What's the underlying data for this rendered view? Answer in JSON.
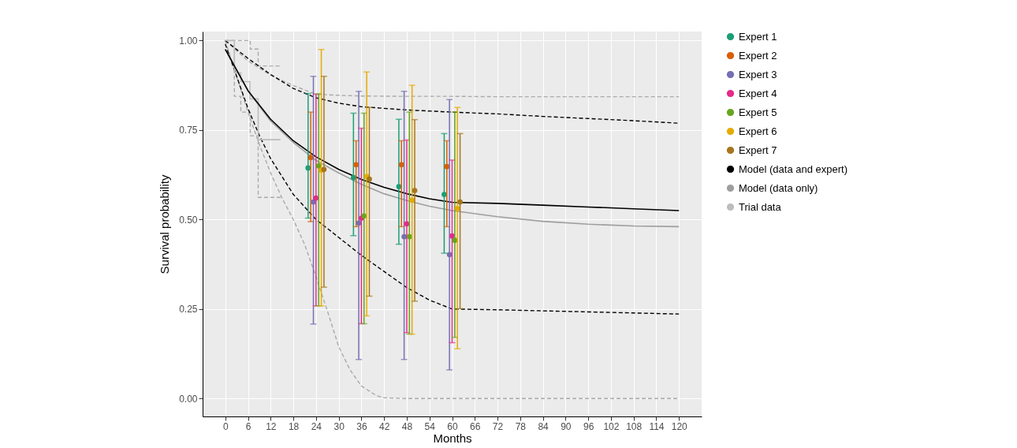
{
  "chart_data": {
    "type": "line",
    "xlabel": "Months",
    "ylabel": "Survival probability",
    "xlim": [
      -6,
      126
    ],
    "xticks": [
      0,
      6,
      12,
      18,
      24,
      30,
      36,
      42,
      48,
      54,
      60,
      66,
      72,
      78,
      84,
      90,
      96,
      102,
      108,
      114,
      120
    ],
    "ylim": [
      -0.05,
      1.025
    ],
    "yticks": [
      {
        "value": 0,
        "label": "0.00"
      },
      {
        "value": 0.25,
        "label": "0.25"
      },
      {
        "value": 0.5,
        "label": "0.50"
      },
      {
        "value": 0.75,
        "label": "0.75"
      },
      {
        "value": 1,
        "label": "1.00"
      }
    ],
    "grid": true,
    "legend": "right",
    "line_style": "solid",
    "series": [
      {
        "type": "line",
        "line_style": "dashed",
        "color": "#aaaaaa",
        "x": [
          0,
          6,
          12,
          18,
          24,
          30,
          36,
          48,
          60,
          72,
          84,
          96,
          108,
          120
        ],
        "values": [
          1.0,
          0.943,
          0.903,
          0.874,
          0.85,
          0.847,
          0.845,
          0.844,
          0.844,
          0.843,
          0.843,
          0.843,
          0.843,
          0.843
        ]
      },
      {
        "type": "line",
        "line_style": "dashed",
        "color": "#aaaaaa",
        "x": [
          0,
          3,
          6,
          9,
          12,
          15,
          18,
          21,
          24,
          27,
          30,
          33,
          36,
          40,
          42,
          48,
          60,
          72,
          84,
          96,
          108,
          120
        ],
        "values": [
          1.0,
          0.9,
          0.8,
          0.71,
          0.63,
          0.56,
          0.5,
          0.43,
          0.34,
          0.245,
          0.145,
          0.08,
          0.035,
          0.008,
          0.002,
          0,
          0,
          0,
          0,
          0,
          0,
          0
        ]
      },
      {
        "type": "step",
        "line_style": "dashed",
        "color": "#aaaaaa",
        "x": [
          0,
          6.6,
          8.7,
          14.6
        ],
        "values": [
          1.0,
          0.976,
          0.929,
          0.929
        ]
      },
      {
        "type": "step",
        "line_style": "dashed",
        "color": "#aaaaaa",
        "x": [
          0,
          2.4,
          4.1,
          6.6,
          8.7,
          14.6
        ],
        "values": [
          1.0,
          0.844,
          0.8,
          0.734,
          0.562,
          0.562
        ]
      },
      {
        "type": "line",
        "line_style": "dashed",
        "color": "#000000",
        "x": [
          0,
          6,
          12,
          18,
          24,
          30,
          36,
          48,
          60,
          72,
          84,
          96,
          108,
          120
        ],
        "values": [
          1.0,
          0.95,
          0.905,
          0.866,
          0.84,
          0.825,
          0.815,
          0.806,
          0.8,
          0.795,
          0.788,
          0.782,
          0.776,
          0.769
        ]
      },
      {
        "type": "line",
        "line_style": "dashed",
        "color": "#000000",
        "x": [
          0,
          3,
          6,
          9,
          12,
          18,
          24,
          30,
          36,
          42,
          48,
          54,
          60,
          72,
          84,
          96,
          108,
          120
        ],
        "values": [
          0.99,
          0.9,
          0.81,
          0.735,
          0.67,
          0.57,
          0.5,
          0.45,
          0.4,
          0.355,
          0.31,
          0.275,
          0.25,
          0.248,
          0.245,
          0.242,
          0.239,
          0.236
        ]
      },
      {
        "type": "step",
        "name": "Trial data",
        "color": "#bdbdbd",
        "x": [
          0,
          2.4,
          4.1,
          6.5,
          8.7,
          14.6
        ],
        "values": [
          1.0,
          0.91,
          0.885,
          0.837,
          0.723,
          0.723
        ]
      },
      {
        "type": "line",
        "name": "Model (data only)",
        "color": "#9e9e9e",
        "x": [
          0,
          6,
          12,
          18,
          24,
          30,
          36,
          42,
          48,
          54,
          60,
          72,
          84,
          96,
          108,
          120
        ],
        "values": [
          0.975,
          0.86,
          0.775,
          0.715,
          0.665,
          0.63,
          0.598,
          0.572,
          0.553,
          0.537,
          0.525,
          0.508,
          0.495,
          0.487,
          0.482,
          0.48
        ]
      },
      {
        "type": "line",
        "name": "Model (data and expert)",
        "color": "#000000",
        "x": [
          0,
          6,
          12,
          18,
          24,
          30,
          36,
          42,
          48,
          54,
          60,
          72,
          84,
          96,
          108,
          120
        ],
        "values": [
          0.975,
          0.86,
          0.78,
          0.72,
          0.675,
          0.64,
          0.612,
          0.59,
          0.572,
          0.558,
          0.548,
          0.545,
          0.54,
          0.535,
          0.53,
          0.525
        ]
      },
      {
        "type": "scatter",
        "marker": "circle",
        "name": "Expert 1",
        "color": "#1b9e77",
        "x": [
          21.9,
          33.9,
          45.9,
          57.9
        ],
        "values": [
          0.644,
          0.617,
          0.592,
          0.57
        ],
        "errors": [
          [
            0.504,
            0.852
          ],
          [
            0.455,
            0.797
          ],
          [
            0.431,
            0.78
          ],
          [
            0.406,
            0.74
          ]
        ]
      },
      {
        "type": "scatter",
        "marker": "circle",
        "name": "Expert 2",
        "color": "#d95f02",
        "x": [
          22.6,
          34.6,
          46.6,
          58.6
        ],
        "values": [
          0.673,
          0.653,
          0.653,
          0.648
        ],
        "errors": [
          [
            0.494,
            0.8
          ],
          [
            0.48,
            0.72
          ],
          [
            0.48,
            0.72
          ],
          [
            0.48,
            0.72
          ]
        ]
      },
      {
        "type": "scatter",
        "marker": "circle",
        "name": "Expert 3",
        "color": "#7570b3",
        "x": [
          23.3,
          35.3,
          47.3,
          59.3
        ],
        "values": [
          0.549,
          0.49,
          0.452,
          0.402
        ],
        "errors": [
          [
            0.208,
            0.9
          ],
          [
            0.109,
            0.858
          ],
          [
            0.109,
            0.858
          ],
          [
            0.08,
            0.835
          ]
        ]
      },
      {
        "type": "scatter",
        "marker": "circle",
        "name": "Expert 4",
        "color": "#e7298a",
        "x": [
          24.0,
          36.0,
          48.0,
          60.0
        ],
        "values": [
          0.56,
          0.504,
          0.488,
          0.454
        ],
        "errors": [
          [
            0.259,
            0.85
          ],
          [
            0.209,
            0.755
          ],
          [
            0.184,
            0.722
          ],
          [
            0.156,
            0.666
          ]
        ]
      },
      {
        "type": "scatter",
        "marker": "circle",
        "name": "Expert 5",
        "color": "#66a61e",
        "x": [
          24.7,
          36.7,
          48.7,
          60.7
        ],
        "values": [
          0.65,
          0.51,
          0.452,
          0.442
        ],
        "errors": [
          [
            0.259,
            0.851
          ],
          [
            0.209,
            0.797
          ],
          [
            0.18,
            0.8
          ],
          [
            0.171,
            0.8
          ]
        ]
      },
      {
        "type": "scatter",
        "marker": "circle",
        "name": "Expert 6",
        "color": "#e6ab02",
        "x": [
          25.4,
          37.4,
          49.4,
          61.4
        ],
        "values": [
          0.638,
          0.62,
          0.554,
          0.531
        ],
        "errors": [
          [
            0.259,
            0.975
          ],
          [
            0.231,
            0.912
          ],
          [
            0.18,
            0.875
          ],
          [
            0.139,
            0.813
          ]
        ]
      },
      {
        "type": "scatter",
        "marker": "circle",
        "name": "Expert 7",
        "color": "#a6761d",
        "x": [
          26.1,
          38.1,
          50.1,
          62.1
        ],
        "values": [
          0.64,
          0.613,
          0.581,
          0.549
        ],
        "errors": [
          [
            0.311,
            0.9
          ],
          [
            0.286,
            0.813
          ],
          [
            0.272,
            0.779
          ],
          [
            0.251,
            0.74
          ]
        ]
      }
    ]
  }
}
